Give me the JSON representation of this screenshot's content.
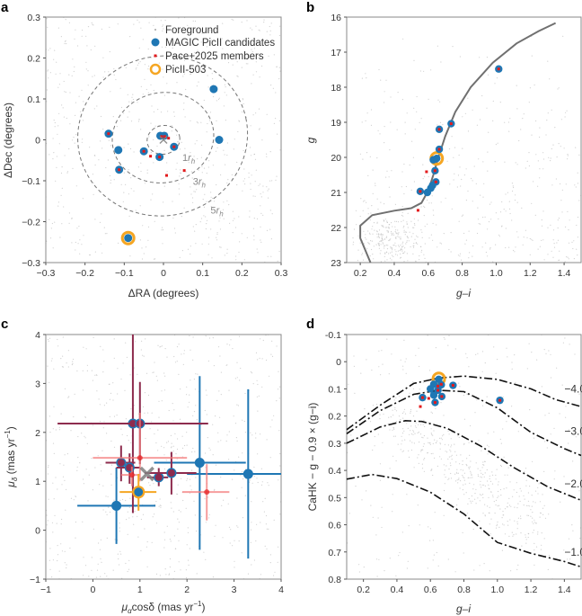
{
  "colors": {
    "foreground": "#bdbdbd",
    "candidate": "#1f77b4",
    "member": "#e31a1c",
    "picII503": "#f5a623",
    "isochrone": "#707070",
    "center": "#808080",
    "maroon": "#8e2c4e",
    "lightred": "#f47c7c"
  },
  "chart_data": [
    {
      "panel": "a",
      "type": "scatter",
      "xlabel": "ΔRA (degrees)",
      "ylabel": "ΔDec (degrees)",
      "xlim": [
        -0.3,
        0.3
      ],
      "ylim": [
        -0.3,
        0.3
      ],
      "xticks": [
        -0.3,
        -0.2,
        -0.1,
        0,
        0.1,
        0.2,
        0.3
      ],
      "xtick_labels": [
        "−0.3",
        "−0.2",
        "−0.1",
        "0",
        "0.1",
        "0.2",
        "0.3"
      ],
      "yticks": [
        -0.3,
        -0.2,
        -0.1,
        0,
        0.1,
        0.2,
        0.3
      ],
      "ytick_labels": [
        "−0.3",
        "−0.2",
        "−0.1",
        "0",
        "0.1",
        "0.2",
        "0.3"
      ],
      "legend": {
        "placement": "top-right",
        "entries": [
          "Foreground",
          "MAGIC PicII candidates",
          "Pace+2025 members",
          "PicII-503"
        ]
      },
      "candidates": [
        [
          -0.14,
          0.015
        ],
        [
          -0.115,
          -0.025
        ],
        [
          -0.113,
          -0.073
        ],
        [
          -0.05,
          -0.028
        ],
        [
          -0.01,
          -0.042
        ],
        [
          -0.008,
          0.01
        ],
        [
          0.002,
          0.01
        ],
        [
          0.027,
          -0.017
        ],
        [
          0.128,
          0.124
        ],
        [
          0.142,
          0.0
        ],
        [
          -0.09,
          -0.24
        ]
      ],
      "members": [
        [
          -0.14,
          0.015
        ],
        [
          -0.113,
          -0.073
        ],
        [
          -0.05,
          -0.028
        ],
        [
          -0.01,
          -0.042
        ],
        [
          -0.005,
          0.008
        ],
        [
          0.003,
          0.008
        ],
        [
          0.013,
          0.004
        ],
        [
          0.027,
          -0.017
        ],
        [
          -0.033,
          -0.04
        ],
        [
          0.008,
          -0.087
        ],
        [
          0.053,
          -0.075
        ]
      ],
      "picII503": [
        -0.09,
        -0.24
      ],
      "center": [
        0,
        0
      ],
      "ellipses": [
        {
          "label": {
            "n": "1",
            "r": "r",
            "sub": "h"
          },
          "semi_axes": [
            0.042,
            0.035
          ],
          "label_at": [
            0.048,
            -0.052
          ]
        },
        {
          "label": {
            "n": "3",
            "r": "r",
            "sub": "h"
          },
          "semi_axes": [
            0.13,
            0.11
          ],
          "label_at": [
            0.075,
            -0.11
          ]
        },
        {
          "label": {
            "n": "5",
            "r": "r",
            "sub": "h"
          },
          "semi_axes": [
            0.217,
            0.195
          ],
          "label_at": [
            0.12,
            -0.18
          ]
        }
      ]
    },
    {
      "panel": "b",
      "type": "scatter",
      "xlabel": "g–i",
      "ylabel": "g",
      "xlim": [
        0.12,
        1.5
      ],
      "ylim": [
        23,
        16
      ],
      "y_inverted": true,
      "xticks": [
        0.2,
        0.4,
        0.6,
        0.8,
        1.0,
        1.2,
        1.4
      ],
      "xtick_labels": [
        "0.2",
        "0.4",
        "0.6",
        "0.8",
        "1.0",
        "1.2",
        "1.4"
      ],
      "yticks": [
        16,
        17,
        18,
        19,
        20,
        21,
        22,
        23
      ],
      "ytick_labels": [
        "16",
        "17",
        "18",
        "19",
        "20",
        "21",
        "22",
        "23"
      ],
      "candidates": [
        [
          1.015,
          17.48
        ],
        [
          0.735,
          19.04
        ],
        [
          0.665,
          19.2
        ],
        [
          0.665,
          19.77
        ],
        [
          0.63,
          20.07
        ],
        [
          0.65,
          20.03
        ],
        [
          0.64,
          20.38
        ],
        [
          0.645,
          20.7
        ],
        [
          0.625,
          20.8
        ],
        [
          0.615,
          20.88
        ],
        [
          0.595,
          21.0
        ],
        [
          0.553,
          20.97
        ]
      ],
      "members": [
        [
          1.015,
          17.48
        ],
        [
          0.735,
          19.04
        ],
        [
          0.665,
          19.2
        ],
        [
          0.665,
          19.77
        ],
        [
          0.64,
          20.38
        ],
        [
          0.645,
          20.7
        ],
        [
          0.553,
          20.97
        ],
        [
          0.59,
          20.41
        ],
        [
          0.54,
          21.51
        ]
      ],
      "picII503": [
        0.65,
        20.03
      ],
      "isochrone": [
        [
          0.26,
          23
        ],
        [
          0.2,
          22.3
        ],
        [
          0.2,
          21.95
        ],
        [
          0.27,
          21.65
        ],
        [
          0.4,
          21.52
        ],
        [
          0.5,
          21.45
        ],
        [
          0.56,
          21.3
        ],
        [
          0.6,
          20.95
        ],
        [
          0.63,
          20.5
        ],
        [
          0.66,
          20.0
        ],
        [
          0.7,
          19.4
        ],
        [
          0.76,
          18.7
        ],
        [
          0.85,
          18.0
        ],
        [
          0.98,
          17.3
        ],
        [
          1.12,
          16.75
        ],
        [
          1.25,
          16.4
        ],
        [
          1.35,
          16.17
        ]
      ]
    },
    {
      "panel": "c",
      "type": "scatter",
      "xlabel": {
        "mu": "μ",
        "sub": "α",
        "rest": "cosδ (mas yr",
        "sup": "−1",
        "end": ")"
      },
      "ylabel": {
        "mu": "μ",
        "sub": "δ",
        "rest": " (mas yr",
        "sup": "−1",
        "end": ")"
      },
      "xlim": [
        -1,
        4
      ],
      "ylim": [
        -1,
        4
      ],
      "xticks": [
        -1,
        0,
        1,
        2,
        3,
        4
      ],
      "xtick_labels": [
        "−1",
        "0",
        "1",
        "2",
        "3",
        "4"
      ],
      "yticks": [
        -1,
        0,
        1,
        2,
        3,
        4
      ],
      "ytick_labels": [
        "−1",
        "0",
        "1",
        "2",
        "3",
        "4"
      ],
      "center": [
        1.15,
        1.15
      ],
      "points": [
        {
          "x": 0.5,
          "y": 0.5,
          "x_range": [
            -0.33,
            1.33
          ],
          "y_range": [
            -0.28,
            1.28
          ],
          "kind": "candidate"
        },
        {
          "x": 2.27,
          "y": 1.38,
          "x_range": [
            1.3,
            3.25
          ],
          "y_range": [
            -0.4,
            3.15
          ],
          "kind": "candidate"
        },
        {
          "x": 3.3,
          "y": 1.15,
          "x_range": [
            2.0,
            4.0
          ],
          "y_range": [
            -0.58,
            2.88
          ],
          "kind": "candidate"
        },
        {
          "x": 0.85,
          "y": 2.18,
          "x_range": [
            -0.75,
            2.45
          ],
          "y_range": [
            0.35,
            4.0
          ],
          "kind": "both"
        },
        {
          "x": 1.0,
          "y": 2.18,
          "x_range": [
            0.0,
            1.95
          ],
          "y_range": [
            1.35,
            3.03
          ],
          "kind": "both"
        },
        {
          "x": 0.6,
          "y": 1.38,
          "x_range": [
            0.27,
            0.9
          ],
          "y_range": [
            1.0,
            1.73
          ],
          "kind": "both"
        },
        {
          "x": 0.78,
          "y": 1.28,
          "x_range": [
            0.5,
            1.0
          ],
          "y_range": [
            0.95,
            1.57
          ],
          "kind": "both"
        },
        {
          "x": 1.4,
          "y": 1.08,
          "x_range": [
            1.15,
            1.6
          ],
          "y_range": [
            0.9,
            1.27
          ],
          "kind": "both"
        },
        {
          "x": 1.67,
          "y": 1.17,
          "x_range": [
            1.1,
            2.2
          ],
          "y_range": [
            0.73,
            1.6
          ],
          "kind": "both"
        },
        {
          "x": 1.0,
          "y": 1.48,
          "x_range": [
            0.0,
            2.0
          ],
          "y_range": [
            1.0,
            2.4
          ],
          "kind": "member"
        },
        {
          "x": 2.42,
          "y": 0.78,
          "x_range": [
            1.9,
            2.9
          ],
          "y_range": [
            0.2,
            1.35
          ],
          "kind": "member"
        },
        {
          "x": 0.83,
          "y": 1.13,
          "x_range": [
            0.6,
            1.0
          ],
          "y_range": [
            0.9,
            1.3
          ],
          "kind": "member"
        },
        {
          "x": 0.97,
          "y": 0.78,
          "x_range": [
            0.57,
            1.35
          ],
          "y_range": [
            0.4,
            1.15
          ],
          "kind": "picII503"
        }
      ]
    },
    {
      "panel": "d",
      "type": "scatter",
      "xlabel": "g–i",
      "ylabel": "CaHK − g − 0.9 × (g−i)",
      "xlim": [
        0.1,
        1.5
      ],
      "ylim": [
        0.8,
        -0.1
      ],
      "y_inverted": true,
      "xticks": [
        0.2,
        0.4,
        0.6,
        0.8,
        1.0,
        1.2,
        1.4
      ],
      "xtick_labels": [
        "0.2",
        "0.4",
        "0.6",
        "0.8",
        "1.0",
        "1.2",
        "1.4"
      ],
      "yticks": [
        -0.1,
        0,
        0.1,
        0.2,
        0.3,
        0.4,
        0.5,
        0.6,
        0.7,
        0.8
      ],
      "ytick_labels": [
        "-0.1",
        "0",
        "0.1",
        "0.2",
        "0.3",
        "0.4",
        "0.5",
        "0.6",
        "0.7",
        "0.8"
      ],
      "candidates": [
        [
          0.62,
          0.083
        ],
        [
          0.6,
          0.1
        ],
        [
          0.645,
          0.105
        ],
        [
          0.665,
          0.085
        ],
        [
          0.735,
          0.087
        ],
        [
          0.553,
          0.132
        ],
        [
          0.62,
          0.123
        ],
        [
          0.668,
          0.128
        ],
        [
          0.628,
          0.15
        ],
        [
          1.015,
          0.142
        ],
        [
          0.65,
          0.065
        ]
      ],
      "members": [
        [
          0.645,
          0.09
        ],
        [
          0.665,
          0.083
        ],
        [
          0.735,
          0.087
        ],
        [
          0.553,
          0.132
        ],
        [
          0.668,
          0.128
        ],
        [
          0.628,
          0.15
        ],
        [
          1.015,
          0.142
        ],
        [
          0.59,
          0.135
        ],
        [
          0.54,
          0.165
        ],
        [
          0.645,
          0.105
        ]
      ],
      "picII503": [
        0.65,
        0.063
      ],
      "metallicity_tracks": [
        {
          "label": "−4.0",
          "label_at": [
            1.4,
            0.1
          ],
          "points": [
            [
              0.1,
              0.25
            ],
            [
              0.3,
              0.16
            ],
            [
              0.5,
              0.08
            ],
            [
              0.65,
              0.06
            ],
            [
              0.8,
              0.053
            ],
            [
              1.0,
              0.065
            ],
            [
              1.2,
              0.1
            ],
            [
              1.35,
              0.14
            ],
            [
              1.5,
              0.165
            ]
          ]
        },
        {
          "label": "−3.0",
          "label_at": [
            1.4,
            0.255
          ],
          "points": [
            [
              0.1,
              0.265
            ],
            [
              0.3,
              0.18
            ],
            [
              0.5,
              0.12
            ],
            [
              0.65,
              0.105
            ],
            [
              0.8,
              0.11
            ],
            [
              1.0,
              0.17
            ],
            [
              1.2,
              0.26
            ],
            [
              1.4,
              0.32
            ],
            [
              1.5,
              0.345
            ]
          ]
        },
        {
          "label": "−2.0",
          "label_at": [
            1.4,
            0.45
          ],
          "points": [
            [
              0.1,
              0.3
            ],
            [
              0.3,
              0.24
            ],
            [
              0.45,
              0.217
            ],
            [
              0.55,
              0.22
            ],
            [
              0.7,
              0.245
            ],
            [
              0.9,
              0.31
            ],
            [
              1.1,
              0.39
            ],
            [
              1.3,
              0.46
            ],
            [
              1.5,
              0.51
            ]
          ]
        },
        {
          "label": "−1.0",
          "label_at": [
            1.4,
            0.7
          ],
          "points": [
            [
              0.1,
              0.432
            ],
            [
              0.25,
              0.415
            ],
            [
              0.4,
              0.43
            ],
            [
              0.6,
              0.48
            ],
            [
              0.8,
              0.56
            ],
            [
              1.0,
              0.665
            ],
            [
              1.2,
              0.705
            ],
            [
              1.4,
              0.735
            ],
            [
              1.5,
              0.755
            ]
          ]
        }
      ]
    }
  ],
  "panel_labels": [
    "a",
    "b",
    "c",
    "d"
  ]
}
